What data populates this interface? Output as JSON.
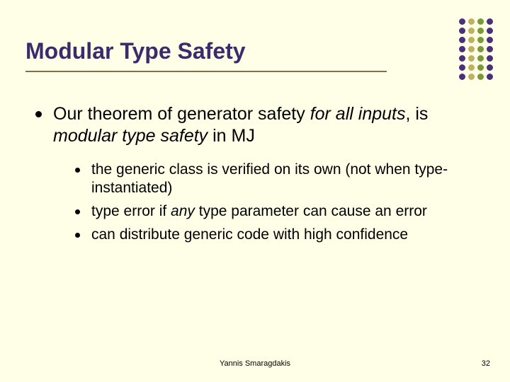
{
  "background_color": "#ffffe8",
  "title": {
    "text": "Modular Type Safety",
    "color": "#3b2b6b",
    "fontsize": 32,
    "underline_color": "#807048"
  },
  "decoration": {
    "dot_columns": [
      {
        "color": "#4c2f7a",
        "count": 7
      },
      {
        "color": "#c0b060",
        "count": 7
      },
      {
        "color": "#7a9a3a",
        "count": 7
      },
      {
        "color": "#4c2f7a",
        "count": 7
      }
    ],
    "dot_size": 9,
    "dot_gap": 4
  },
  "bullets": {
    "lvl1": [
      {
        "runs": [
          {
            "t": "Our theorem of generator safety ",
            "i": false
          },
          {
            "t": "for all inputs",
            "i": true
          },
          {
            "t": ", is ",
            "i": false
          },
          {
            "t": "modular type safety",
            "i": true
          },
          {
            "t": " in MJ",
            "i": false
          }
        ],
        "lvl2": [
          {
            "runs": [
              {
                "t": "the generic class is verified on its own (not when type-instantiated)",
                "i": false
              }
            ]
          },
          {
            "runs": [
              {
                "t": "type error if ",
                "i": false
              },
              {
                "t": "any",
                "i": true
              },
              {
                "t": " type parameter can cause an error",
                "i": false
              }
            ]
          },
          {
            "runs": [
              {
                "t": "can distribute generic code with high confidence",
                "i": false
              }
            ]
          }
        ]
      }
    ],
    "lvl1_fontsize": 25,
    "lvl2_fontsize": 21,
    "bullet_color": "#000000"
  },
  "footer": {
    "author": "Yannis Smaragdakis",
    "page": "32",
    "fontsize": 11
  }
}
